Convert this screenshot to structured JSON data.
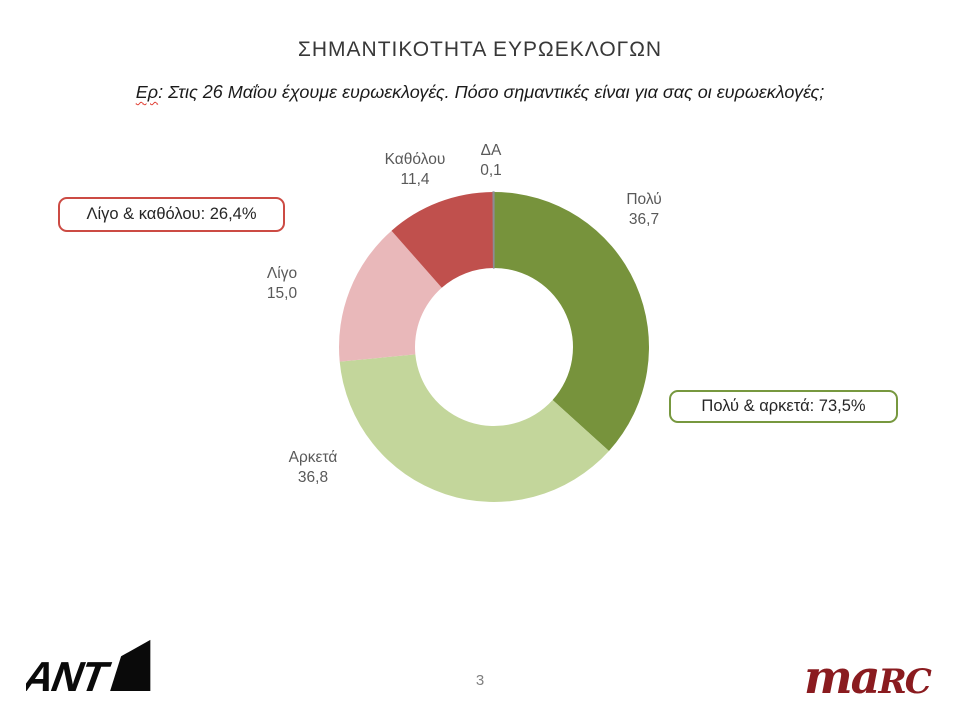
{
  "page": {
    "title": "ΣΗΜΑΝΤΙΚΟΤΗΤΑ ΕΥΡΩΕΚΛΟΓΩΝ",
    "question_prefix": "Ερ",
    "question_rest": ": Στις 26 Μαΐου έχουμε ευρωεκλογές. Πόσο σημαντικές είναι για σας οι ευρωεκλογές;"
  },
  "chart_data": {
    "type": "pie",
    "variant": "donut",
    "title": "ΣΗΜΑΝΤΙΚΟΤΗΤΑ ΕΥΡΩΕΚΛΟΓΩΝ",
    "categories": [
      "Πολύ",
      "Αρκετά",
      "Λίγο",
      "Καθόλου",
      "ΔΑ"
    ],
    "values": [
      36.7,
      36.8,
      15.0,
      11.4,
      0.1
    ],
    "value_labels": [
      "36,7",
      "36,8",
      "15,0",
      "11,4",
      "0,1"
    ],
    "colors": [
      "#77933C",
      "#C3D69B",
      "#E9B8BA",
      "#C0504D",
      "#8C8C94"
    ],
    "start_angle_deg": 0,
    "direction": "clockwise",
    "donut_hole_ratio": 0.51,
    "legend_position": "none",
    "annotations": [
      "Λίγο & καθόλου: 26,4%",
      "Πολύ & αρκετά: 73,5%"
    ]
  },
  "callouts": {
    "negative": {
      "label": "Λίγο & καθόλου: 26,4%",
      "border_color": "#CC4B44"
    },
    "positive": {
      "label": "Πολύ & αρκετά: 73,5%",
      "border_color": "#77983F"
    }
  },
  "footer": {
    "page_number": "3",
    "left_logo": "ANT1",
    "ant1_text": "ANT",
    "marc_prefix": "ma",
    "marc_suffix": "RC",
    "marc_color": "#8A1B1F"
  }
}
